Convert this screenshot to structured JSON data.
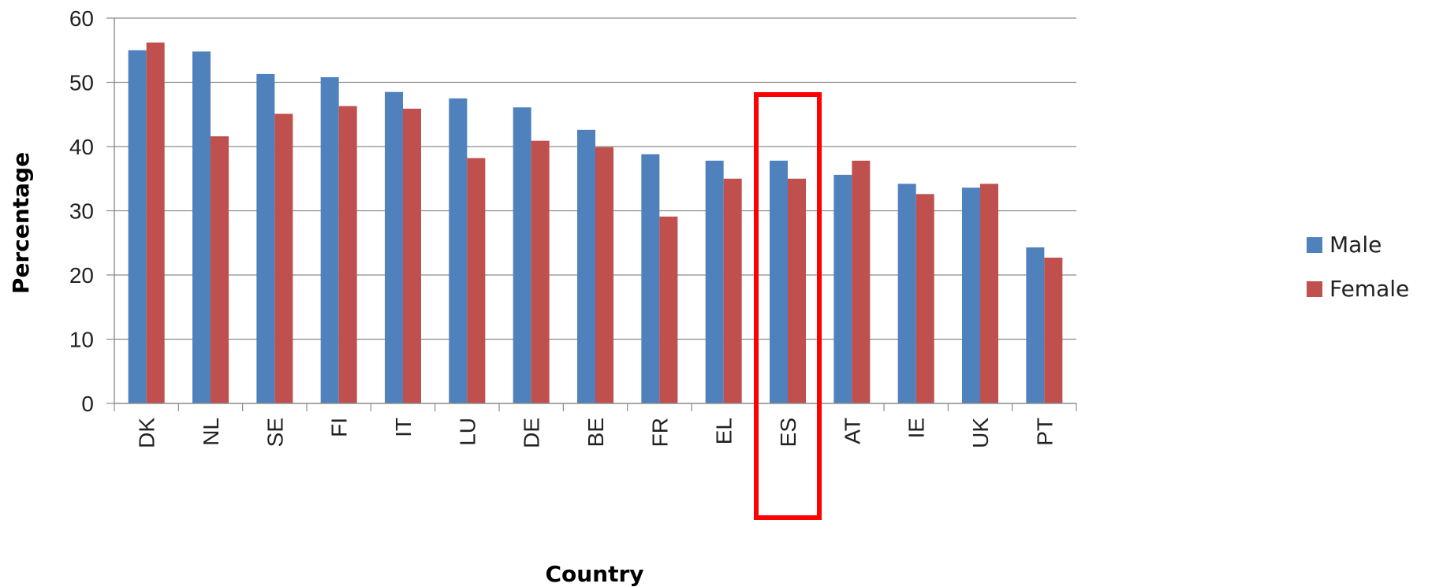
{
  "chart_data": {
    "type": "bar",
    "xlabel": "Country",
    "ylabel": "Percentage",
    "ylim": [
      0,
      60
    ],
    "yticks": [
      0,
      10,
      20,
      30,
      40,
      50,
      60
    ],
    "grid": true,
    "legend_position": "right",
    "categories": [
      "DK",
      "NL",
      "SE",
      "FI",
      "IT",
      "LU",
      "DE",
      "BE",
      "FR",
      "EL",
      "ES",
      "AT",
      "IE",
      "UK",
      "PT"
    ],
    "series": [
      {
        "name": "Male",
        "color": "#4f81bd",
        "values": [
          55,
          54.8,
          51.3,
          50.8,
          48.5,
          47.5,
          46.1,
          42.6,
          38.8,
          37.8,
          37.8,
          35.6,
          34.2,
          33.6,
          24.3
        ]
      },
      {
        "name": "Female",
        "color": "#c0504d",
        "values": [
          56.2,
          41.6,
          45.1,
          46.3,
          45.9,
          38.2,
          40.9,
          39.9,
          29.1,
          35,
          35,
          37.8,
          32.6,
          34.2,
          22.7
        ]
      }
    ],
    "highlight": {
      "category": "ES",
      "color": "#ff0000"
    }
  }
}
